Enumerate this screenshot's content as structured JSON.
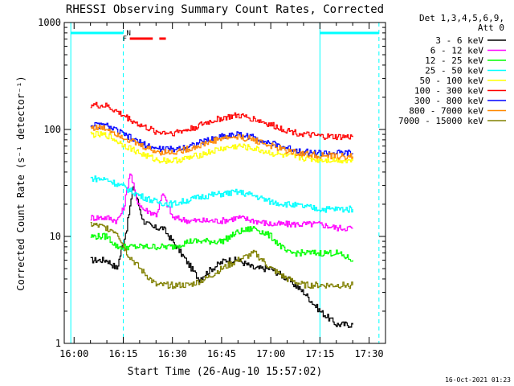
{
  "chart_data": {
    "type": "line",
    "title": "RHESSI Observing Summary Count Rates, Corrected",
    "xlabel": "Start Time (26-Aug-10 15:57:02)",
    "ylabel": "Corrected Count Rate (s⁻¹ detector⁻¹)",
    "y_scale": "log",
    "ylim": [
      1,
      1000
    ],
    "x_range_minutes": [
      "15:57",
      "17:35"
    ],
    "x_ticks": [
      "16:00",
      "16:15",
      "16:30",
      "16:45",
      "17:00",
      "17:15",
      "17:30"
    ],
    "y_ticks": [
      "1",
      "10",
      "100",
      "1000"
    ],
    "legend_header": [
      "Det 1,3,4,5,6,9,",
      "Att 0"
    ],
    "legend_position": "right",
    "timestamp": "16-Oct-2021 01:23",
    "markers": {
      "N": "N",
      "F": "F"
    },
    "vertical_lines": [
      {
        "time": "15:59",
        "style": "solid",
        "color": "#00ffff"
      },
      {
        "time": "16:15",
        "style": "dashed",
        "color": "#00ffff"
      },
      {
        "time": "17:15",
        "style": "solid",
        "color": "#00ffff"
      },
      {
        "time": "17:33",
        "style": "dashed",
        "color": "#00ffff"
      }
    ],
    "night_bars": [
      [
        "15:59",
        "16:15"
      ],
      [
        "17:15",
        "17:33"
      ]
    ],
    "flare_bars": [
      [
        "16:17",
        "16:24"
      ],
      [
        "16:26",
        "16:28"
      ]
    ],
    "series": [
      {
        "name": "3 - 6 keV",
        "color": "#000000",
        "x": [
          "16:05",
          "16:10",
          "16:13",
          "16:16",
          "16:18",
          "16:21",
          "16:24",
          "16:27",
          "16:30",
          "16:34",
          "16:38",
          "16:42",
          "16:46",
          "16:50",
          "16:55",
          "17:00",
          "17:05",
          "17:10",
          "17:15",
          "17:20",
          "17:25"
        ],
        "y": [
          6,
          6,
          5,
          12,
          30,
          14,
          12,
          12,
          9,
          6,
          4,
          5,
          6,
          6,
          5,
          5,
          4,
          3,
          2,
          1.5,
          1.5
        ]
      },
      {
        "name": "6 - 12 keV",
        "color": "#ff00ff",
        "x": [
          "16:05",
          "16:10",
          "16:13",
          "16:15",
          "16:17",
          "16:19",
          "16:21",
          "16:23",
          "16:25",
          "16:27",
          "16:30",
          "16:35",
          "16:40",
          "16:45",
          "16:50",
          "16:55",
          "17:00",
          "17:05",
          "17:10",
          "17:15",
          "17:20",
          "17:25"
        ],
        "y": [
          15,
          15,
          14,
          18,
          40,
          22,
          18,
          17,
          16,
          25,
          15,
          14,
          14,
          14,
          15,
          14,
          13,
          13,
          13,
          13,
          12,
          12
        ]
      },
      {
        "name": "12 - 25 keV",
        "color": "#00ff00",
        "x": [
          "16:05",
          "16:10",
          "16:13",
          "16:16",
          "16:20",
          "16:25",
          "16:30",
          "16:35",
          "16:40",
          "16:45",
          "16:50",
          "16:55",
          "17:00",
          "17:05",
          "17:10",
          "17:15",
          "17:20",
          "17:25"
        ],
        "y": [
          10,
          10,
          8,
          8,
          8,
          8,
          8,
          9,
          9,
          9,
          11,
          12,
          10,
          7,
          7,
          7,
          7,
          6
        ]
      },
      {
        "name": "25 - 50 keV",
        "color": "#00ffff",
        "x": [
          "16:05",
          "16:10",
          "16:15",
          "16:20",
          "16:25",
          "16:30",
          "16:35",
          "16:40",
          "16:45",
          "16:50",
          "16:55",
          "17:00",
          "17:05",
          "17:10",
          "17:15",
          "17:20",
          "17:25"
        ],
        "y": [
          35,
          34,
          29,
          24,
          21,
          20,
          22,
          24,
          25,
          26,
          24,
          21,
          20,
          19,
          18,
          18,
          18
        ]
      },
      {
        "name": "50 - 100 keV",
        "color": "#ffff00",
        "x": [
          "16:05",
          "16:10",
          "16:15",
          "16:20",
          "16:25",
          "16:30",
          "16:35",
          "16:40",
          "16:45",
          "16:50",
          "16:55",
          "17:00",
          "17:05",
          "17:10",
          "17:15",
          "17:20",
          "17:25"
        ],
        "y": [
          90,
          88,
          72,
          60,
          52,
          51,
          54,
          60,
          66,
          70,
          66,
          60,
          56,
          54,
          52,
          52,
          51
        ]
      },
      {
        "name": "100 - 300 keV",
        "color": "#ff0000",
        "x": [
          "16:05",
          "16:10",
          "16:15",
          "16:20",
          "16:25",
          "16:30",
          "16:35",
          "16:40",
          "16:45",
          "16:50",
          "16:55",
          "17:00",
          "17:05",
          "17:10",
          "17:15",
          "17:20",
          "17:25"
        ],
        "y": [
          170,
          165,
          135,
          110,
          95,
          93,
          100,
          115,
          128,
          135,
          125,
          110,
          98,
          90,
          86,
          85,
          85
        ]
      },
      {
        "name": "300 - 800 keV",
        "color": "#0000ff",
        "x": [
          "16:05",
          "16:10",
          "16:15",
          "16:20",
          "16:25",
          "16:30",
          "16:35",
          "16:40",
          "16:45",
          "16:50",
          "16:55",
          "17:00",
          "17:05",
          "17:10",
          "17:15",
          "17:20",
          "17:25"
        ],
        "y": [
          110,
          108,
          90,
          75,
          66,
          65,
          70,
          78,
          87,
          90,
          84,
          74,
          67,
          62,
          60,
          60,
          60
        ]
      },
      {
        "name": "800 - 7000 keV",
        "color": "#ff8800",
        "x": [
          "16:05",
          "16:10",
          "16:15",
          "16:20",
          "16:25",
          "16:30",
          "16:35",
          "16:40",
          "16:45",
          "16:50",
          "16:55",
          "17:00",
          "17:05",
          "17:10",
          "17:15",
          "17:20",
          "17:25"
        ],
        "y": [
          105,
          102,
          85,
          71,
          62,
          61,
          66,
          74,
          83,
          85,
          80,
          70,
          63,
          59,
          57,
          56,
          56
        ]
      },
      {
        "name": "7000 - 15000 keV",
        "color": "#808000",
        "x": [
          "16:05",
          "16:10",
          "16:13",
          "16:16",
          "16:20",
          "16:25",
          "16:30",
          "16:35",
          "16:40",
          "16:45",
          "16:50",
          "16:55",
          "17:00",
          "17:05",
          "17:10",
          "17:15",
          "17:20",
          "17:25"
        ],
        "y": [
          13,
          12,
          11,
          7,
          5,
          3.5,
          3.5,
          3.5,
          4,
          5,
          6,
          7,
          5,
          4,
          3.5,
          3.5,
          3.5,
          3.5
        ]
      }
    ]
  }
}
